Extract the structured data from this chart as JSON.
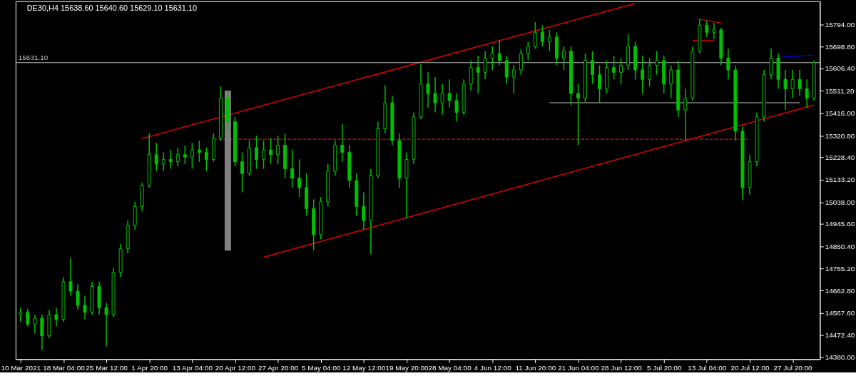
{
  "chart_data": {
    "type": "candlestick",
    "title": "DE30,H4 15638.60 15640.60 15629.10 15631.10",
    "color": "#00c000",
    "categories": [
      "10 Mar 2021",
      null,
      null,
      null,
      null,
      null,
      "18 Mar 04:00",
      null,
      null,
      null,
      null,
      null,
      "25 Mar 12:00",
      null,
      null,
      null,
      null,
      null,
      "1 Apr 20:00",
      null,
      null,
      null,
      null,
      null,
      "13 Apr 04:00",
      null,
      null,
      null,
      null,
      null,
      "20 Apr 12:00",
      null,
      null,
      null,
      null,
      null,
      "27 Apr 20:00",
      null,
      null,
      null,
      null,
      null,
      "5 May 04:00",
      null,
      null,
      null,
      null,
      null,
      "12 May 12:00",
      null,
      null,
      null,
      null,
      null,
      "19 May 20:00",
      null,
      null,
      null,
      null,
      null,
      "28 May 04:00",
      null,
      null,
      null,
      null,
      null,
      "4 Jun 12:00",
      null,
      null,
      null,
      null,
      null,
      "11 Jun 20:00",
      null,
      null,
      null,
      null,
      null,
      "21 Jun 04:00",
      null,
      null,
      null,
      null,
      null,
      "28 Jun 12:00",
      null,
      null,
      null,
      null,
      null,
      "5 Jul 20:00",
      null,
      null,
      null,
      null,
      null,
      "13 Jul 04:00",
      null,
      null,
      null,
      null,
      null,
      "20 Jul 12:00",
      null,
      null,
      null,
      null,
      null,
      "27 Jul 20:00",
      null,
      null,
      null
    ],
    "ohlc": [
      [
        14560,
        14590,
        14530,
        14570
      ],
      [
        14570,
        14585,
        14510,
        14520
      ],
      [
        14520,
        14560,
        14480,
        14545
      ],
      [
        14545,
        14560,
        14410,
        14470
      ],
      [
        14470,
        14580,
        14460,
        14560
      ],
      [
        14560,
        14590,
        14510,
        14540
      ],
      [
        14540,
        14720,
        14530,
        14700
      ],
      [
        14700,
        14800,
        14640,
        14660
      ],
      [
        14660,
        14690,
        14580,
        14600
      ],
      [
        14600,
        14640,
        14540,
        14570
      ],
      [
        14570,
        14700,
        14560,
        14680
      ],
      [
        14680,
        14700,
        14560,
        14590
      ],
      [
        14590,
        14610,
        14425,
        14560
      ],
      [
        14560,
        14760,
        14550,
        14740
      ],
      [
        14740,
        14860,
        14720,
        14840
      ],
      [
        14840,
        14960,
        14820,
        14940
      ],
      [
        14940,
        15040,
        14920,
        15020
      ],
      [
        15020,
        15120,
        15000,
        15110
      ],
      [
        15110,
        15330,
        15100,
        15240
      ],
      [
        15240,
        15290,
        15170,
        15200
      ],
      [
        15200,
        15250,
        15170,
        15220
      ],
      [
        15220,
        15260,
        15180,
        15210
      ],
      [
        15210,
        15270,
        15190,
        15240
      ],
      [
        15240,
        15280,
        15200,
        15230
      ],
      [
        15230,
        15290,
        15180,
        15260
      ],
      [
        15260,
        15300,
        15210,
        15250
      ],
      [
        15250,
        15270,
        15170,
        15220
      ],
      [
        15220,
        15330,
        15210,
        15310
      ],
      [
        15310,
        15530,
        15300,
        15480
      ],
      [
        15480,
        15510,
        15340,
        15380
      ],
      [
        15380,
        15400,
        15190,
        15210
      ],
      [
        15210,
        15250,
        15080,
        15160
      ],
      [
        15160,
        15300,
        15150,
        15270
      ],
      [
        15270,
        15320,
        15180,
        15220
      ],
      [
        15220,
        15300,
        15180,
        15260
      ],
      [
        15260,
        15310,
        15200,
        15240
      ],
      [
        15240,
        15320,
        15200,
        15280
      ],
      [
        15280,
        15330,
        15140,
        15180
      ],
      [
        15180,
        15260,
        15100,
        15140
      ],
      [
        15140,
        15220,
        15060,
        15100
      ],
      [
        15100,
        15160,
        14980,
        15010
      ],
      [
        15010,
        15050,
        14834,
        14900
      ],
      [
        14900,
        15060,
        14880,
        15040
      ],
      [
        15040,
        15200,
        15020,
        15170
      ],
      [
        15170,
        15300,
        15150,
        15280
      ],
      [
        15280,
        15370,
        15210,
        15250
      ],
      [
        15250,
        15280,
        15100,
        15130
      ],
      [
        15130,
        15160,
        14980,
        15020
      ],
      [
        15020,
        15080,
        14920,
        14960
      ],
      [
        14960,
        15180,
        14818,
        15150
      ],
      [
        15150,
        15380,
        15140,
        15350
      ],
      [
        15350,
        15534,
        15330,
        15460
      ],
      [
        15460,
        15490,
        15280,
        15300
      ],
      [
        15300,
        15330,
        15100,
        15140
      ],
      [
        15140,
        15250,
        14968,
        15220
      ],
      [
        15220,
        15420,
        15200,
        15400
      ],
      [
        15400,
        15624,
        15390,
        15540
      ],
      [
        15540,
        15590,
        15440,
        15500
      ],
      [
        15500,
        15570,
        15420,
        15460
      ],
      [
        15460,
        15540,
        15410,
        15500
      ],
      [
        15500,
        15560,
        15440,
        15470
      ],
      [
        15470,
        15500,
        15380,
        15420
      ],
      [
        15420,
        15560,
        15410,
        15540
      ],
      [
        15540,
        15640,
        15510,
        15610
      ],
      [
        15610,
        15660,
        15500,
        15590
      ],
      [
        15590,
        15680,
        15560,
        15650
      ],
      [
        15650,
        15700,
        15600,
        15670
      ],
      [
        15670,
        15728,
        15620,
        15640
      ],
      [
        15640,
        15660,
        15540,
        15570
      ],
      [
        15570,
        15620,
        15500,
        15600
      ],
      [
        15600,
        15690,
        15580,
        15670
      ],
      [
        15670,
        15720,
        15640,
        15700
      ],
      [
        15700,
        15803,
        15690,
        15760
      ],
      [
        15760,
        15790,
        15700,
        15720
      ],
      [
        15720,
        15770,
        15680,
        15740
      ],
      [
        15740,
        15760,
        15620,
        15650
      ],
      [
        15650,
        15700,
        15600,
        15680
      ],
      [
        15680,
        15700,
        15450,
        15500
      ],
      [
        15500,
        15540,
        15281,
        15480
      ],
      [
        15480,
        15670,
        15460,
        15640
      ],
      [
        15640,
        15680,
        15540,
        15580
      ],
      [
        15580,
        15620,
        15460,
        15520
      ],
      [
        15520,
        15640,
        15500,
        15610
      ],
      [
        15610,
        15660,
        15560,
        15590
      ],
      [
        15590,
        15650,
        15540,
        15620
      ],
      [
        15620,
        15752,
        15600,
        15700
      ],
      [
        15700,
        15720,
        15560,
        15600
      ],
      [
        15600,
        15660,
        15500,
        15560
      ],
      [
        15560,
        15650,
        15530,
        15620
      ],
      [
        15620,
        15680,
        15580,
        15640
      ],
      [
        15640,
        15660,
        15500,
        15540
      ],
      [
        15540,
        15620,
        15480,
        15600
      ],
      [
        15600,
        15640,
        15400,
        15430
      ],
      [
        15430,
        15520,
        15296,
        15480
      ],
      [
        15480,
        15700,
        15470,
        15680
      ],
      [
        15680,
        15818,
        15670,
        15790
      ],
      [
        15790,
        15810,
        15740,
        15760
      ],
      [
        15760,
        15800,
        15730,
        15770
      ],
      [
        15770,
        15780,
        15620,
        15650
      ],
      [
        15650,
        15690,
        15560,
        15600
      ],
      [
        15600,
        15620,
        15300,
        15340
      ],
      [
        15340,
        15360,
        15048,
        15100
      ],
      [
        15100,
        15240,
        15070,
        15210
      ],
      [
        15210,
        15420,
        15190,
        15400
      ],
      [
        15400,
        15600,
        15380,
        15580
      ],
      [
        15580,
        15690,
        15560,
        15650
      ],
      [
        15650,
        15670,
        15520,
        15560
      ],
      [
        15560,
        15600,
        15430,
        15520
      ],
      [
        15520,
        15600,
        15480,
        15560
      ],
      [
        15560,
        15600,
        15490,
        15520
      ],
      [
        15520,
        15560,
        15439,
        15480
      ],
      [
        15480,
        15640,
        15470,
        15631.1
      ]
    ],
    "series": [
      {
        "type": "line",
        "color": "#e00000",
        "values": [
          null,
          null,
          null,
          null,
          null,
          null,
          null,
          null,
          null,
          null,
          null,
          null,
          null,
          null,
          null,
          null,
          null,
          15308,
          null,
          null,
          null,
          null,
          null,
          null,
          null,
          null,
          null,
          null,
          null,
          null,
          null,
          null,
          null,
          null,
          null,
          null,
          null,
          null,
          null,
          null,
          null,
          null,
          null,
          null,
          null,
          null,
          null,
          null,
          null,
          null,
          null,
          null,
          null,
          null,
          null,
          null,
          null,
          null,
          null,
          null,
          null,
          null,
          null,
          null,
          null,
          null,
          null,
          null,
          null,
          null,
          null,
          null,
          null,
          null,
          null,
          null,
          null,
          null,
          null,
          null,
          null,
          null,
          null,
          null,
          null,
          null,
          15883,
          null,
          null,
          null,
          null,
          null,
          null,
          null,
          null,
          null,
          null,
          null,
          null,
          null,
          null,
          null,
          null,
          null,
          null,
          null,
          null,
          null,
          null,
          null,
          null,
          null
        ]
      },
      {
        "type": "line",
        "color": "#e00000",
        "values": [
          null,
          null,
          null,
          null,
          null,
          null,
          null,
          null,
          null,
          null,
          null,
          null,
          null,
          null,
          null,
          null,
          null,
          null,
          null,
          null,
          null,
          null,
          null,
          null,
          null,
          null,
          null,
          null,
          null,
          null,
          null,
          null,
          null,
          null,
          14804,
          null,
          null,
          null,
          null,
          null,
          null,
          null,
          null,
          null,
          null,
          null,
          null,
          null,
          null,
          null,
          null,
          null,
          null,
          null,
          null,
          null,
          null,
          null,
          null,
          null,
          null,
          null,
          null,
          null,
          null,
          null,
          null,
          null,
          null,
          null,
          null,
          null,
          null,
          null,
          null,
          null,
          null,
          null,
          null,
          null,
          null,
          null,
          null,
          null,
          null,
          null,
          null,
          null,
          null,
          null,
          null,
          null,
          null,
          null,
          null,
          null,
          null,
          null,
          null,
          null,
          null,
          null,
          null,
          null,
          null,
          null,
          null,
          null,
          null,
          null,
          null,
          15451
        ]
      },
      {
        "type": "line",
        "color": "#c00000",
        "line_style": "dashed",
        "values": [
          null,
          null,
          null,
          null,
          null,
          null,
          null,
          null,
          null,
          null,
          null,
          null,
          null,
          null,
          null,
          null,
          null,
          null,
          null,
          null,
          null,
          null,
          null,
          null,
          null,
          null,
          null,
          15305,
          null,
          null,
          null,
          null,
          null,
          null,
          null,
          null,
          null,
          null,
          null,
          null,
          null,
          null,
          null,
          null,
          null,
          null,
          null,
          null,
          null,
          null,
          null,
          null,
          null,
          null,
          null,
          null,
          null,
          null,
          null,
          null,
          null,
          null,
          null,
          null,
          null,
          null,
          null,
          null,
          null,
          null,
          null,
          null,
          null,
          null,
          null,
          null,
          null,
          null,
          null,
          null,
          null,
          null,
          null,
          null,
          null,
          null,
          null,
          null,
          null,
          null,
          null,
          null,
          null,
          null,
          null,
          null,
          null,
          null,
          null,
          null,
          null,
          null,
          15305,
          null,
          null,
          null,
          null,
          null,
          null,
          null,
          null,
          null
        ]
      },
      {
        "type": "line",
        "color": "#808080",
        "values": [
          null,
          null,
          null,
          null,
          null,
          null,
          null,
          null,
          null,
          null,
          null,
          null,
          null,
          null,
          null,
          null,
          null,
          null,
          null,
          null,
          null,
          null,
          null,
          null,
          null,
          null,
          null,
          null,
          null,
          null,
          null,
          null,
          null,
          null,
          null,
          null,
          null,
          null,
          null,
          null,
          null,
          null,
          null,
          null,
          null,
          null,
          null,
          null,
          null,
          null,
          null,
          null,
          null,
          null,
          null,
          null,
          null,
          null,
          null,
          null,
          null,
          null,
          null,
          null,
          null,
          null,
          null,
          null,
          null,
          null,
          null,
          null,
          null,
          null,
          15461,
          null,
          null,
          null,
          null,
          null,
          null,
          null,
          null,
          null,
          null,
          null,
          null,
          null,
          null,
          null,
          null,
          null,
          null,
          null,
          null,
          null,
          null,
          null,
          null,
          null,
          null,
          null,
          null,
          null,
          null,
          null,
          null,
          null,
          null,
          15461,
          null,
          null
        ]
      },
      {
        "type": "line",
        "color": "#0000ff",
        "line_style": "dashed",
        "values": [
          null,
          null,
          null,
          null,
          null,
          null,
          null,
          null,
          null,
          null,
          null,
          null,
          null,
          null,
          null,
          null,
          null,
          null,
          null,
          null,
          null,
          null,
          null,
          null,
          null,
          null,
          null,
          null,
          null,
          null,
          null,
          null,
          null,
          null,
          null,
          null,
          null,
          null,
          null,
          null,
          null,
          null,
          null,
          null,
          null,
          null,
          null,
          null,
          null,
          null,
          null,
          null,
          null,
          null,
          null,
          null,
          null,
          null,
          null,
          null,
          null,
          null,
          null,
          null,
          null,
          null,
          null,
          null,
          null,
          null,
          null,
          null,
          null,
          null,
          null,
          null,
          null,
          null,
          null,
          null,
          null,
          null,
          null,
          null,
          null,
          null,
          null,
          null,
          null,
          null,
          null,
          null,
          null,
          null,
          null,
          null,
          null,
          null,
          null,
          null,
          null,
          null,
          null,
          null,
          null,
          null,
          15654,
          null,
          null,
          null,
          null,
          15663
        ]
      },
      {
        "type": "line",
        "color": "#c00000",
        "values": [
          null,
          null,
          null,
          null,
          null,
          null,
          null,
          null,
          null,
          null,
          null,
          null,
          null,
          null,
          null,
          null,
          null,
          null,
          null,
          null,
          null,
          null,
          null,
          null,
          null,
          null,
          null,
          null,
          null,
          null,
          null,
          null,
          null,
          null,
          null,
          null,
          null,
          null,
          null,
          null,
          null,
          null,
          null,
          null,
          null,
          null,
          null,
          null,
          null,
          null,
          null,
          null,
          null,
          null,
          null,
          null,
          null,
          null,
          null,
          null,
          null,
          null,
          null,
          null,
          null,
          null,
          null,
          null,
          null,
          null,
          null,
          null,
          null,
          null,
          null,
          null,
          null,
          null,
          null,
          null,
          null,
          null,
          null,
          null,
          null,
          null,
          null,
          null,
          null,
          null,
          null,
          null,
          null,
          null,
          15725,
          null,
          null,
          15725,
          null,
          null,
          null,
          null,
          null,
          null,
          null,
          null,
          null,
          null,
          null,
          null,
          null,
          null
        ]
      },
      {
        "type": "line",
        "color": "#c00000",
        "values": [
          null,
          null,
          null,
          null,
          null,
          null,
          null,
          null,
          null,
          null,
          null,
          null,
          null,
          null,
          null,
          null,
          null,
          null,
          null,
          null,
          null,
          null,
          null,
          null,
          null,
          null,
          null,
          null,
          null,
          null,
          null,
          null,
          null,
          null,
          null,
          null,
          null,
          null,
          null,
          null,
          null,
          null,
          null,
          null,
          null,
          null,
          null,
          null,
          null,
          null,
          null,
          null,
          null,
          null,
          null,
          null,
          null,
          null,
          null,
          null,
          null,
          null,
          null,
          null,
          null,
          null,
          null,
          null,
          null,
          null,
          null,
          null,
          null,
          null,
          null,
          null,
          null,
          null,
          null,
          null,
          null,
          null,
          null,
          null,
          null,
          null,
          null,
          null,
          null,
          null,
          null,
          null,
          null,
          null,
          null,
          15815,
          null,
          null,
          15800,
          null,
          null,
          null,
          null,
          null,
          null,
          null,
          null,
          null,
          null,
          null,
          null,
          null
        ]
      },
      {
        "type": "bar",
        "color": "#808080",
        "values": [
          null,
          null,
          null,
          null,
          null,
          null,
          null,
          null,
          null,
          null,
          null,
          null,
          null,
          null,
          null,
          null,
          null,
          null,
          null,
          null,
          null,
          null,
          null,
          null,
          null,
          null,
          null,
          null,
          null,
          680,
          null,
          null,
          null,
          null,
          null,
          null,
          null,
          null,
          null,
          null,
          null,
          null,
          null,
          null,
          null,
          null,
          null,
          null,
          null,
          null,
          null,
          null,
          null,
          null,
          null,
          null,
          null,
          null,
          null,
          null,
          null,
          null,
          null,
          null,
          null,
          null,
          null,
          null,
          null,
          null,
          null,
          null,
          null,
          null,
          null,
          null,
          null,
          null,
          null,
          null,
          null,
          null,
          null,
          null,
          null,
          null,
          null,
          null,
          null,
          null,
          null,
          null,
          null,
          null,
          null,
          null,
          null,
          null,
          null,
          null,
          null,
          null,
          null,
          null,
          null,
          null,
          null,
          null,
          null,
          null,
          null,
          null
        ],
        "base": [
          null,
          null,
          null,
          null,
          null,
          null,
          null,
          null,
          null,
          null,
          null,
          null,
          null,
          null,
          null,
          null,
          null,
          null,
          null,
          null,
          null,
          null,
          null,
          null,
          null,
          null,
          null,
          null,
          null,
          14832,
          null,
          null,
          null,
          null,
          null,
          null,
          null,
          null,
          null,
          null,
          null,
          null,
          null,
          null,
          null,
          null,
          null,
          null,
          null,
          null,
          null,
          null,
          null,
          null,
          null,
          null,
          null,
          null,
          null,
          null,
          null,
          null,
          null,
          null,
          null,
          null,
          null,
          null,
          null,
          null,
          null,
          null,
          null,
          null,
          null,
          null,
          null,
          null,
          null,
          null,
          null,
          null,
          null,
          null,
          null,
          null,
          null,
          null,
          null,
          null,
          null,
          null,
          null,
          null,
          null,
          null,
          null,
          null,
          null,
          null,
          null,
          null,
          null,
          null,
          null,
          null,
          null,
          null,
          null,
          null,
          null,
          null
        ]
      }
    ],
    "ref_lines": [
      {
        "axis": "y",
        "value": 15631.1,
        "label": "15631.10",
        "color": "#c0c0c0"
      }
    ],
    "ylim": [
      14371,
      15892
    ],
    "yticks": [
      {
        "value": 15794,
        "label": "15794.00"
      },
      {
        "value": 15698.8,
        "label": "15698.80"
      },
      {
        "value": 15606.4,
        "label": "15606.40"
      },
      {
        "value": 15511.2,
        "label": "15511.20"
      },
      {
        "value": 15416,
        "label": "15416.00"
      },
      {
        "value": 15320.8,
        "label": "15320.80"
      },
      {
        "value": 15228.4,
        "label": "15228.40"
      },
      {
        "value": 15133.2,
        "label": "15133.20"
      },
      {
        "value": 15038,
        "label": "15038.00"
      },
      {
        "value": 14945.6,
        "label": "14945.60"
      },
      {
        "value": 14850.4,
        "label": "14850.40"
      },
      {
        "value": 14755.2,
        "label": "14755.20"
      },
      {
        "value": 14662.8,
        "label": "14662.80"
      },
      {
        "value": 14567.6,
        "label": "14567.60"
      },
      {
        "value": 14472.4,
        "label": "14472.40"
      },
      {
        "value": 14380,
        "label": "14380.00"
      }
    ],
    "grid": false
  }
}
